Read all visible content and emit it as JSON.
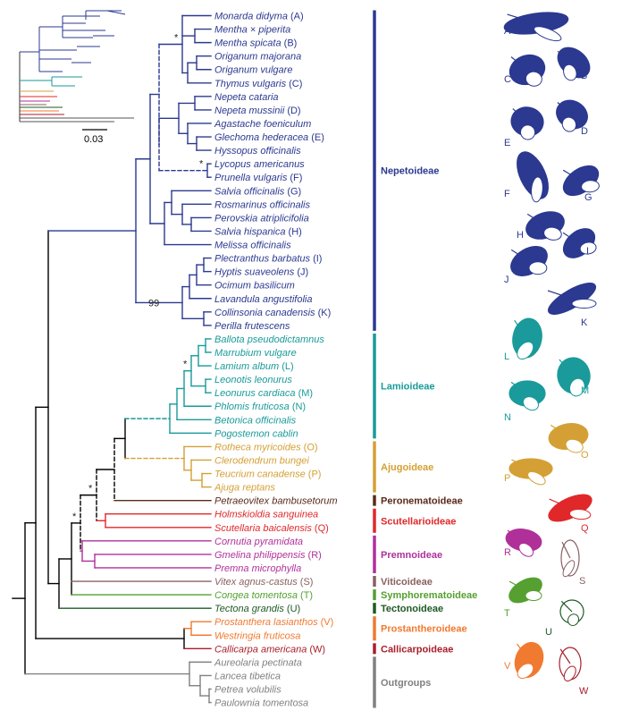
{
  "colors": {
    "nepetoideae": "#2b3990",
    "lamioideae": "#1a9a9a",
    "ajugoideae": "#d4a035",
    "peronematoideae": "#5a2a1a",
    "scutellarioideae": "#e0282a",
    "premnoideae": "#b0309a",
    "viticoideae": "#8a6060",
    "symphorematoideae": "#55a030",
    "tectonoideae": "#1f5a25",
    "prostantheroideae": "#f07a30",
    "callicarpoideae": "#a81e2a",
    "outgroups": "#808080",
    "backbone": "#000000"
  },
  "taxa": [
    {
      "name": "Monarda didyma",
      "tag": "(A)",
      "clade": "nepetoideae"
    },
    {
      "name": "Mentha × piperita",
      "tag": "",
      "clade": "nepetoideae"
    },
    {
      "name": "Mentha spicata",
      "tag": "(B)",
      "clade": "nepetoideae"
    },
    {
      "name": "Origanum majorana",
      "tag": "",
      "clade": "nepetoideae"
    },
    {
      "name": "Origanum vulgare",
      "tag": "",
      "clade": "nepetoideae"
    },
    {
      "name": "Thymus vulgaris",
      "tag": "(C)",
      "clade": "nepetoideae"
    },
    {
      "name": "Nepeta cataria",
      "tag": "",
      "clade": "nepetoideae"
    },
    {
      "name": "Nepeta mussinii",
      "tag": "(D)",
      "clade": "nepetoideae"
    },
    {
      "name": "Agastache foeniculum",
      "tag": "",
      "clade": "nepetoideae"
    },
    {
      "name": "Glechoma hederacea",
      "tag": "(E)",
      "clade": "nepetoideae"
    },
    {
      "name": "Hyssopus officinalis",
      "tag": "",
      "clade": "nepetoideae"
    },
    {
      "name": "Lycopus americanus",
      "tag": "",
      "clade": "nepetoideae"
    },
    {
      "name": "Prunella vulgaris",
      "tag": "(F)",
      "clade": "nepetoideae"
    },
    {
      "name": "Salvia officinalis",
      "tag": "(G)",
      "clade": "nepetoideae"
    },
    {
      "name": "Rosmarinus officinalis",
      "tag": "",
      "clade": "nepetoideae"
    },
    {
      "name": "Perovskia atriplicifolia",
      "tag": "",
      "clade": "nepetoideae"
    },
    {
      "name": "Salvia hispanica",
      "tag": "(H)",
      "clade": "nepetoideae"
    },
    {
      "name": "Melissa officinalis",
      "tag": "",
      "clade": "nepetoideae"
    },
    {
      "name": "Plectranthus barbatus",
      "tag": "(I)",
      "clade": "nepetoideae"
    },
    {
      "name": "Hyptis suaveolens",
      "tag": "(J)",
      "clade": "nepetoideae"
    },
    {
      "name": "Ocimum basilicum",
      "tag": "",
      "clade": "nepetoideae"
    },
    {
      "name": "Lavandula angustifolia",
      "tag": "",
      "clade": "nepetoideae"
    },
    {
      "name": "Collinsonia canadensis",
      "tag": "(K)",
      "clade": "nepetoideae"
    },
    {
      "name": "Perilla frutescens",
      "tag": "",
      "clade": "nepetoideae"
    },
    {
      "name": "Ballota pseudodictamnus",
      "tag": "",
      "clade": "lamioideae"
    },
    {
      "name": "Marrubium vulgare",
      "tag": "",
      "clade": "lamioideae"
    },
    {
      "name": "Lamium album",
      "tag": "(L)",
      "clade": "lamioideae"
    },
    {
      "name": "Leonotis leonurus",
      "tag": "",
      "clade": "lamioideae"
    },
    {
      "name": "Leonurus cardiaca",
      "tag": "(M)",
      "clade": "lamioideae"
    },
    {
      "name": "Phlomis fruticosa",
      "tag": "(N)",
      "clade": "lamioideae"
    },
    {
      "name": "Betonica officinalis",
      "tag": "",
      "clade": "lamioideae"
    },
    {
      "name": "Pogostemon cablin",
      "tag": "",
      "clade": "lamioideae"
    },
    {
      "name": "Rotheca myricoides",
      "tag": "(O)",
      "clade": "ajugoideae"
    },
    {
      "name": "Clerodendrum bungei",
      "tag": "",
      "clade": "ajugoideae"
    },
    {
      "name": "Teucrium canadense",
      "tag": "(P)",
      "clade": "ajugoideae"
    },
    {
      "name": "Ajuga reptans",
      "tag": "",
      "clade": "ajugoideae"
    },
    {
      "name": "Petraeovitex bambusetorum",
      "tag": "",
      "clade": "peronematoideae"
    },
    {
      "name": "Holmskioldia sanguinea",
      "tag": "",
      "clade": "scutellarioideae"
    },
    {
      "name": "Scutellaria baicalensis",
      "tag": "(Q)",
      "clade": "scutellarioideae"
    },
    {
      "name": "Cornutia pyramidata",
      "tag": "",
      "clade": "premnoideae"
    },
    {
      "name": "Gmelina philippensis",
      "tag": "(R)",
      "clade": "premnoideae"
    },
    {
      "name": "Premna microphylla",
      "tag": "",
      "clade": "premnoideae"
    },
    {
      "name": "Vitex agnus-castus",
      "tag": "(S)",
      "clade": "viticoideae"
    },
    {
      "name": "Congea tomentosa",
      "tag": "(T)",
      "clade": "symphorematoideae"
    },
    {
      "name": "Tectona grandis",
      "tag": "(U)",
      "clade": "tectonoideae"
    },
    {
      "name": "Prostanthera lasianthos",
      "tag": "(V)",
      "clade": "prostantheroideae"
    },
    {
      "name": "Westringia fruticosa",
      "tag": "",
      "clade": "prostantheroideae"
    },
    {
      "name": "Callicarpa americana",
      "tag": "(W)",
      "clade": "callicarpoideae"
    },
    {
      "name": "Aureolaria pectinata",
      "tag": "",
      "clade": "outgroups"
    },
    {
      "name": "Lancea tibetica",
      "tag": "",
      "clade": "outgroups"
    },
    {
      "name": "Petrea volubilis",
      "tag": "",
      "clade": "outgroups"
    },
    {
      "name": "Paulownia tomentosa",
      "tag": "",
      "clade": "outgroups"
    }
  ],
  "subfamilies": [
    {
      "label": "Nepetoideae",
      "clade": "nepetoideae",
      "from": 0,
      "to": 23
    },
    {
      "label": "Lamioideae",
      "clade": "lamioideae",
      "from": 24,
      "to": 31
    },
    {
      "label": "Ajugoideae",
      "clade": "ajugoideae",
      "from": 32,
      "to": 35
    },
    {
      "label": "Peronematoideae",
      "clade": "peronematoideae",
      "from": 36,
      "to": 36
    },
    {
      "label": "Scutellarioideae",
      "clade": "scutellarioideae",
      "from": 37,
      "to": 38
    },
    {
      "label": "Premnoideae",
      "clade": "premnoideae",
      "from": 39,
      "to": 41
    },
    {
      "label": "Viticoideae",
      "clade": "viticoideae",
      "from": 42,
      "to": 42
    },
    {
      "label": "Symphorematoideae",
      "clade": "symphorematoideae",
      "from": 43,
      "to": 43
    },
    {
      "label": "Tectonoideae",
      "clade": "tectonoideae",
      "from": 44,
      "to": 44
    },
    {
      "label": "Prostantheroideae",
      "clade": "prostantheroideae",
      "from": 45,
      "to": 46
    },
    {
      "label": "Callicarpoideae",
      "clade": "callicarpoideae",
      "from": 47,
      "to": 47
    },
    {
      "label": "Outgroups",
      "clade": "outgroups",
      "from": 48,
      "to": 51
    }
  ],
  "annotations": {
    "asterisk": "*",
    "bootstrap": "99",
    "scale": "0.03"
  },
  "flower_letters": [
    "A",
    "B",
    "C",
    "D",
    "E",
    "F",
    "G",
    "H",
    "I",
    "J",
    "K",
    "L",
    "M",
    "N",
    "O",
    "P",
    "Q",
    "R",
    "S",
    "T",
    "U",
    "V",
    "W"
  ],
  "flower_clades": [
    "nepetoideae",
    "nepetoideae",
    "nepetoideae",
    "nepetoideae",
    "nepetoideae",
    "nepetoideae",
    "nepetoideae",
    "nepetoideae",
    "nepetoideae",
    "nepetoideae",
    "nepetoideae",
    "lamioideae",
    "lamioideae",
    "lamioideae",
    "ajugoideae",
    "ajugoideae",
    "scutellarioideae",
    "premnoideae",
    "viticoideae",
    "symphorematoideae",
    "tectonoideae",
    "prostantheroideae",
    "callicarpoideae"
  ]
}
